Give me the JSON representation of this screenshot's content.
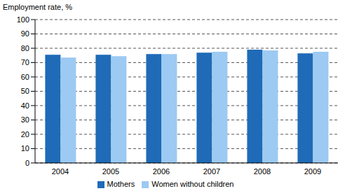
{
  "chart_data": {
    "type": "bar",
    "ylabel": "Employment rate, %",
    "categories": [
      "2004",
      "2005",
      "2006",
      "2007",
      "2008",
      "2009"
    ],
    "series": [
      {
        "name": "Mothers",
        "color": "#1f6bb7",
        "values": [
          75.5,
          75.5,
          76,
          77,
          79,
          76.5
        ]
      },
      {
        "name": "Women without children",
        "color": "#9ccaf2",
        "values": [
          73.5,
          74.5,
          76,
          77.5,
          78.5,
          77.5
        ]
      }
    ],
    "ylim": [
      0,
      100
    ],
    "yticks": [
      0,
      10,
      20,
      30,
      40,
      50,
      60,
      70,
      80,
      90,
      100
    ],
    "grid": true,
    "legend": "bottom"
  }
}
